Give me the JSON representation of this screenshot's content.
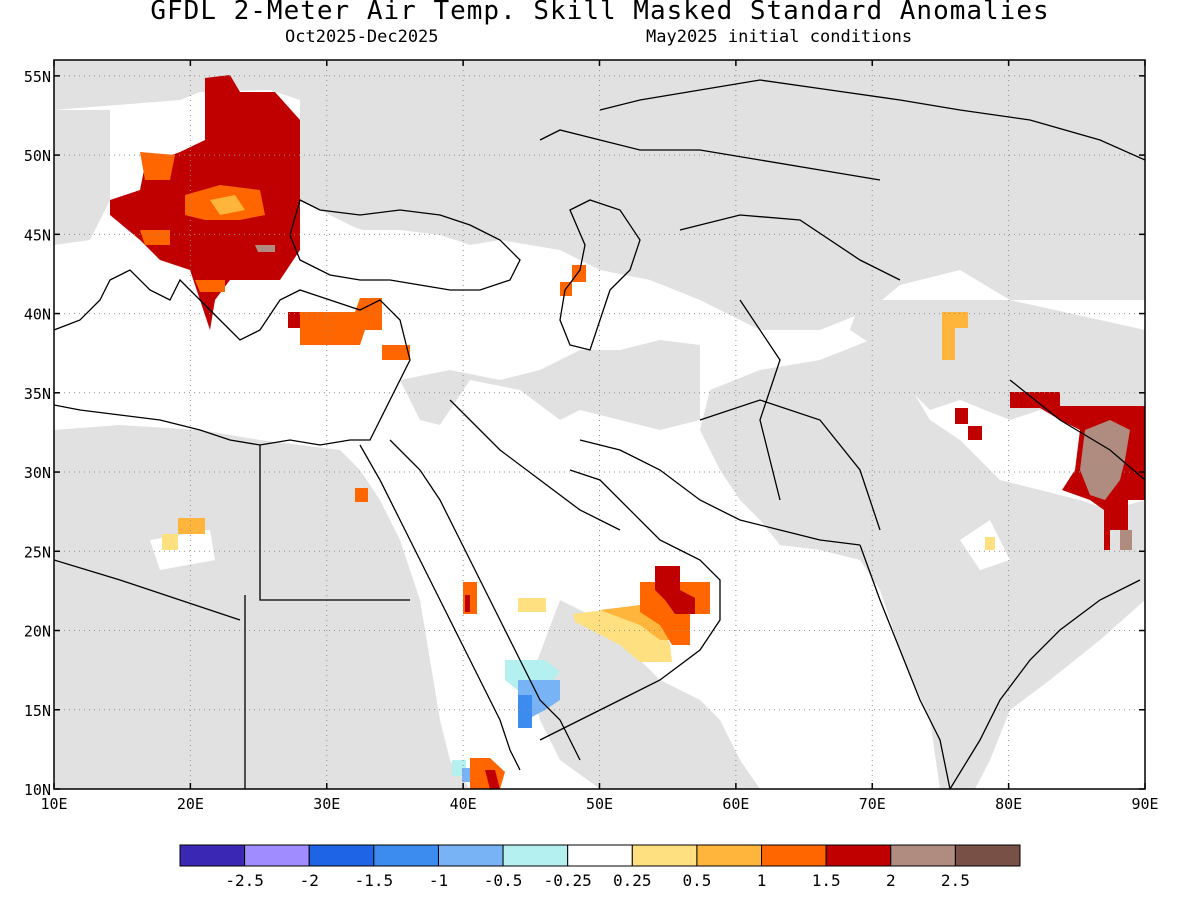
{
  "header": {
    "title": "GFDL 2-Meter Air Temp. Skill Masked Standard Anomalies",
    "season": "Oct2025-Dec2025",
    "init": "May2025 initial conditions"
  },
  "map": {
    "lon_range": [
      10,
      90
    ],
    "lat_range": [
      10,
      56
    ],
    "lon_ticks": [
      10,
      20,
      30,
      40,
      50,
      60,
      70,
      80,
      90
    ],
    "lat_ticks": [
      10,
      15,
      20,
      25,
      30,
      35,
      40,
      45,
      50,
      55
    ],
    "lon_labels": [
      "10E",
      "20E",
      "30E",
      "40E",
      "50E",
      "60E",
      "70E",
      "80E",
      "90E"
    ],
    "lat_labels": [
      "10N",
      "15N",
      "20N",
      "25N",
      "30N",
      "35N",
      "40N",
      "45N",
      "50N",
      "55N"
    ],
    "mask_color": "#e1e1e1",
    "ocean_color": "#ffffff",
    "anomaly_regions": [
      {
        "region": "Eastern Europe / Balkans",
        "class": "1.5-2",
        "color": "#c00000"
      },
      {
        "region": "Hungary / Romania core",
        "class": "1-1.5",
        "color": "#ff6600"
      },
      {
        "region": "Western Turkey",
        "class": "1-1.5",
        "color": "#ff6600"
      },
      {
        "region": "Oman",
        "class": "1-1.5",
        "color": "#ff6600"
      },
      {
        "region": "Southern Arabia",
        "class": "0.25-0.5",
        "color": "#ffe080"
      },
      {
        "region": "Yemen",
        "class": "-1--0.5",
        "color": "#80b8f0"
      },
      {
        "region": "Tibet / Nepal",
        "class": "1.5-2",
        "color": "#c00000"
      },
      {
        "region": "Tibet interior",
        "class": "2-2.5",
        "color": "#b08c80"
      }
    ]
  },
  "colorbar": {
    "colors": [
      "#3a28b4",
      "#a08cff",
      "#1e64e6",
      "#3c8cf0",
      "#78b4f5",
      "#b4f0f0",
      "#ffffff",
      "#ffe080",
      "#ffb43c",
      "#ff6600",
      "#c00000",
      "#b08c80",
      "#785046"
    ],
    "labels": [
      "-2.5",
      "-2",
      "-1.5",
      "-1",
      "-0.5",
      "-0.25",
      "0.25",
      "0.5",
      "1",
      "1.5",
      "2",
      "2.5"
    ]
  }
}
